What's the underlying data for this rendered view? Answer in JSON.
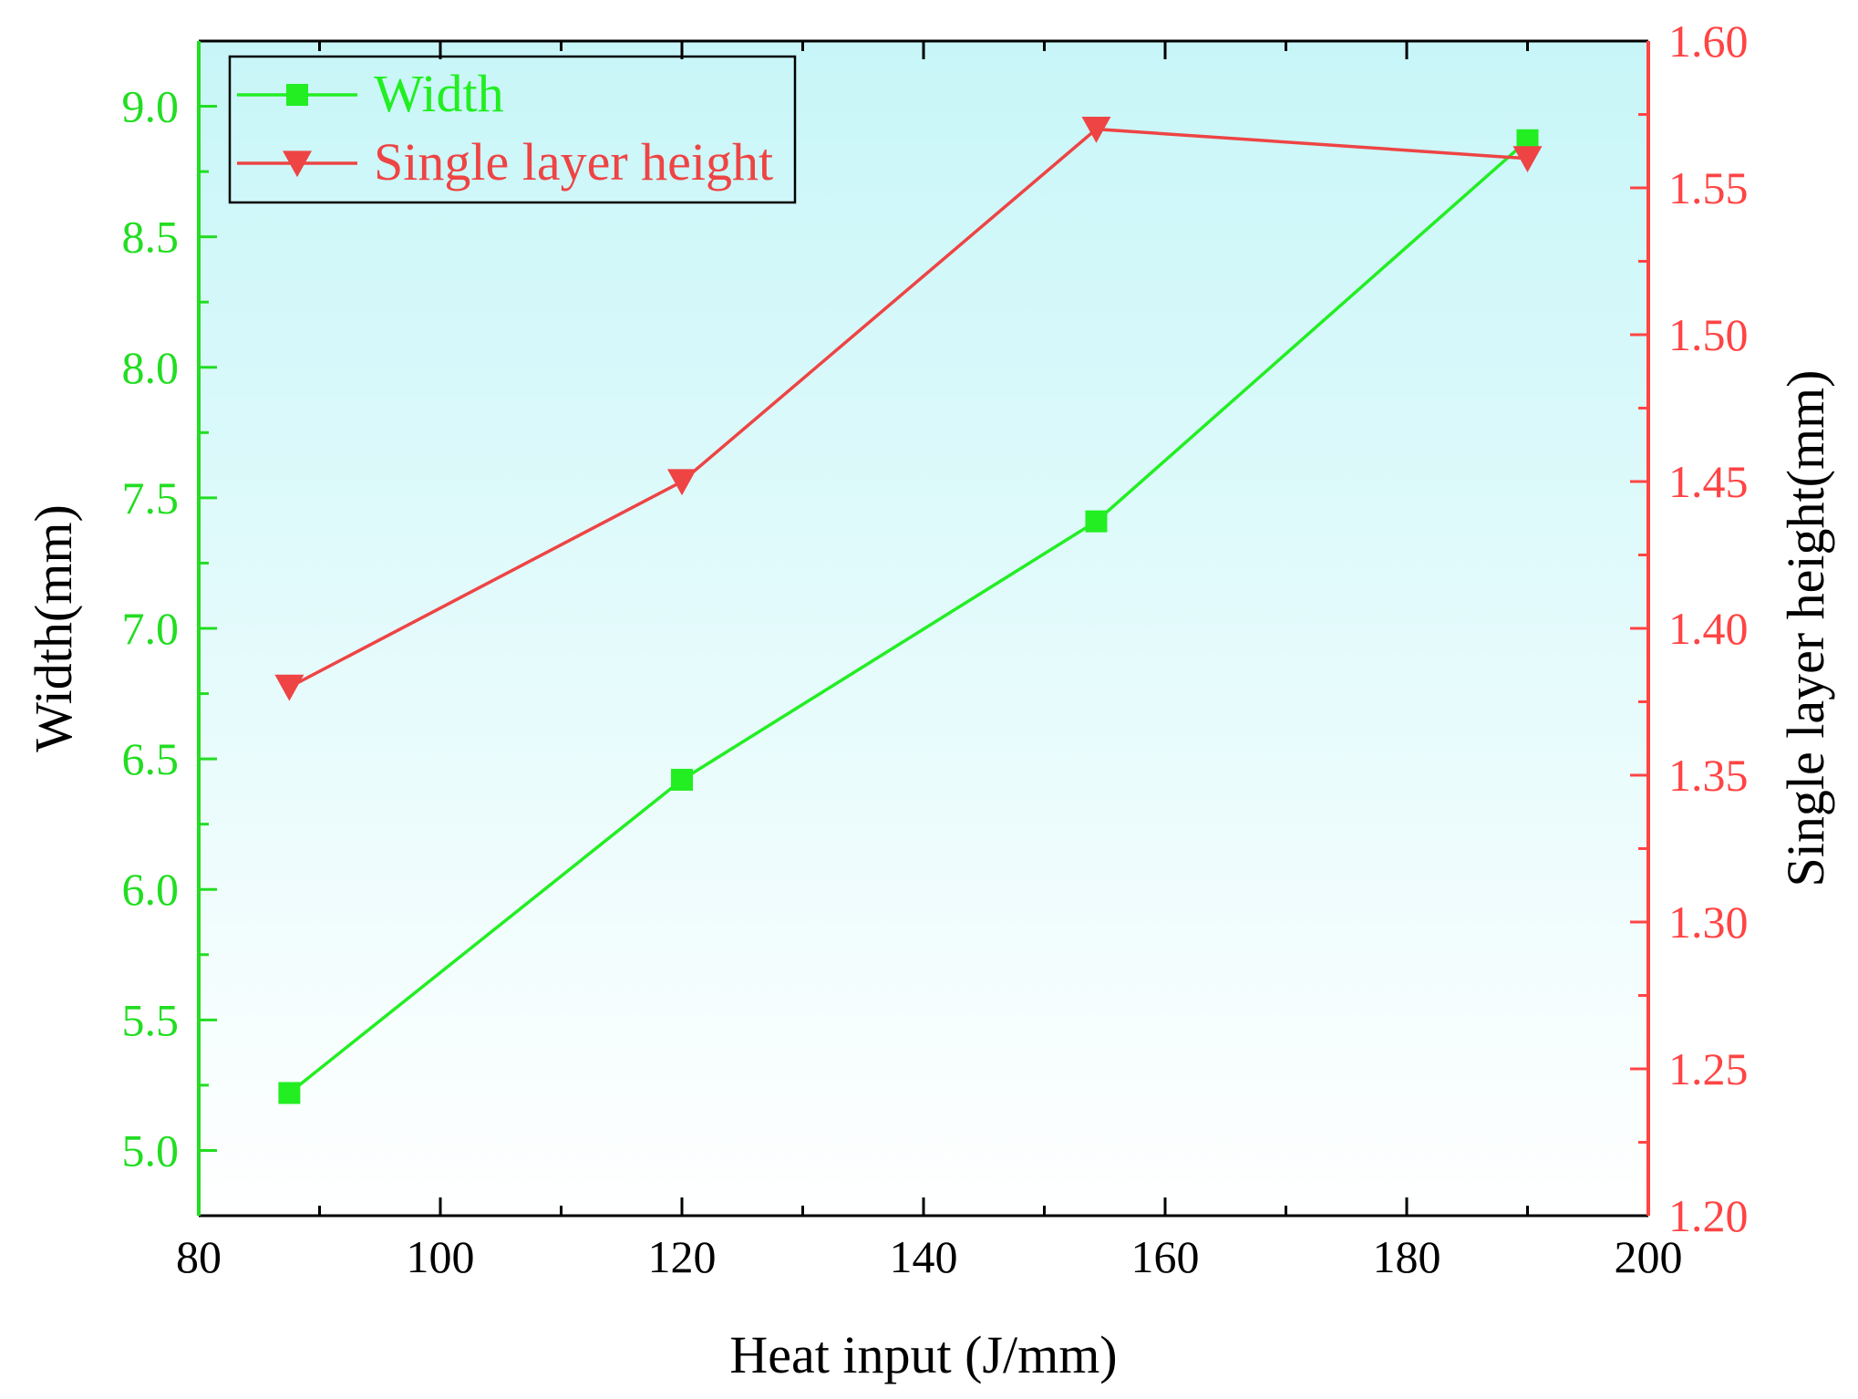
{
  "chart_data": {
    "type": "line",
    "title": "",
    "xlabel": "Heat input (J/mm)",
    "ylabel_left": "Width(mm)",
    "ylabel_right": "Single layer height(mm)",
    "xlim": [
      80,
      200
    ],
    "ylim_left": [
      4.75,
      9.25
    ],
    "ylim_right": [
      1.2,
      1.6
    ],
    "x_ticks": [
      "80",
      "100",
      "120",
      "140",
      "160",
      "180",
      "200"
    ],
    "y_left_ticks": [
      "5.0",
      "5.5",
      "6.0",
      "6.5",
      "7.0",
      "7.5",
      "8.0",
      "8.5",
      "9.0"
    ],
    "y_right_ticks": [
      "1.20",
      "1.25",
      "1.30",
      "1.35",
      "1.40",
      "1.45",
      "1.50",
      "1.55",
      "1.60"
    ],
    "grid": false,
    "legend_position": "top-left",
    "background_gradient": [
      "#c8f6f8",
      "#ffffff"
    ],
    "colors": {
      "left_axis": "#22dd22",
      "right_axis": "#ff4444",
      "width_series": "#22ee22",
      "height_series": "#ee4444"
    },
    "series": [
      {
        "name": "Width",
        "axis": "left",
        "marker": "square",
        "x": [
          87.5,
          120,
          154.3,
          190
        ],
        "y": [
          5.22,
          6.42,
          7.41,
          8.87
        ]
      },
      {
        "name": "Single layer height",
        "axis": "right",
        "marker": "triangle-down",
        "x": [
          87.5,
          120,
          154.3,
          190
        ],
        "y": [
          1.38,
          1.45,
          1.57,
          1.56
        ]
      }
    ]
  }
}
